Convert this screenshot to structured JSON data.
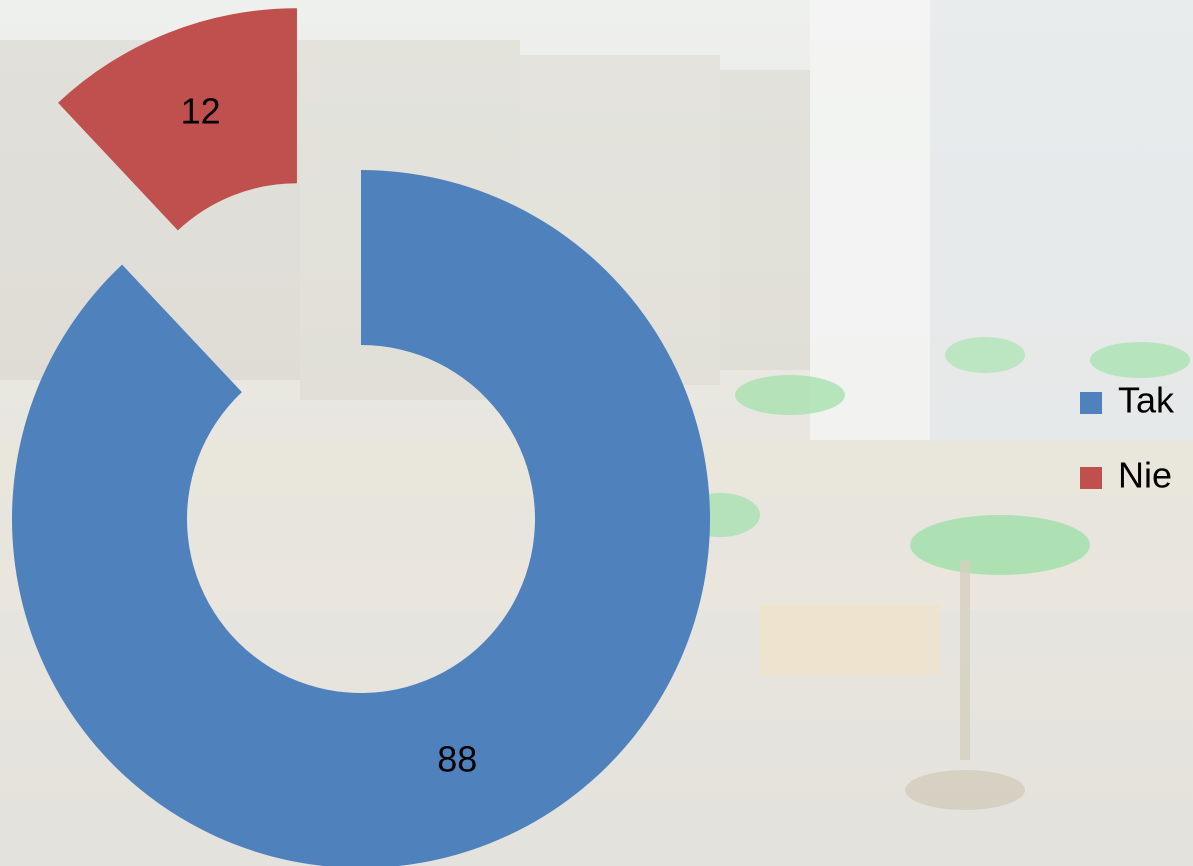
{
  "chart_data": {
    "type": "donut",
    "categories": [
      "Tak",
      "Nie"
    ],
    "values": [
      88,
      12
    ],
    "colors": [
      "#4f81bd",
      "#c0504d"
    ],
    "legend": "right"
  }
}
